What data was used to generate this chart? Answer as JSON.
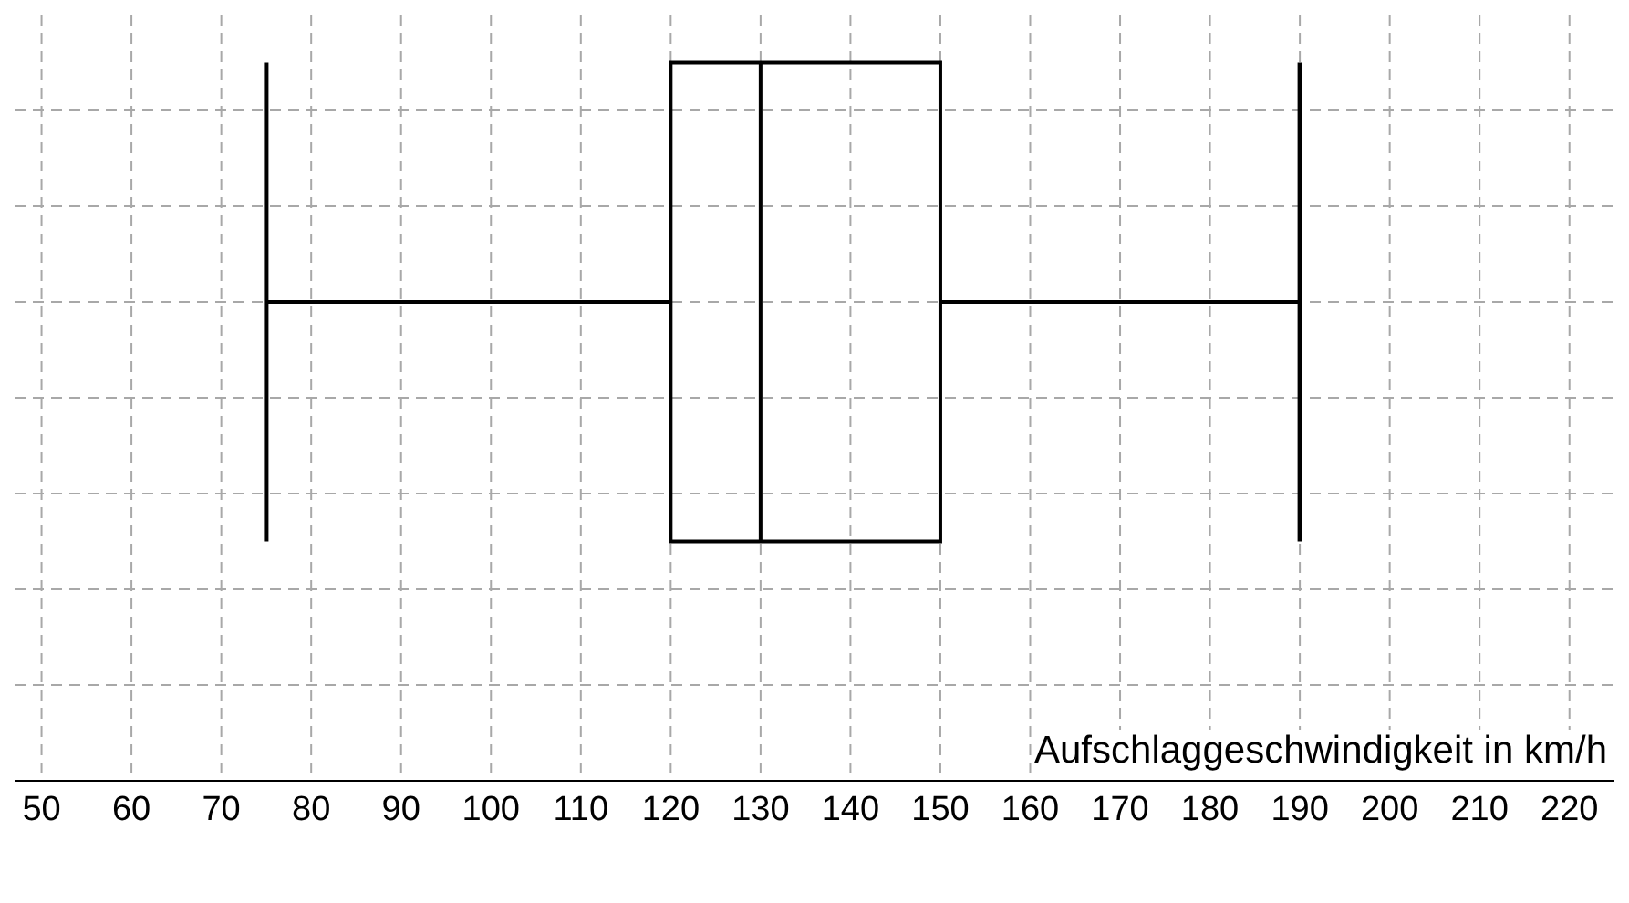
{
  "chart_data": {
    "type": "box",
    "orientation": "horizontal",
    "categories": [
      null
    ],
    "boxes": [
      {
        "low": 75,
        "q1": 120,
        "median": 130,
        "q3": 150,
        "high": 190
      }
    ],
    "color": "#000000",
    "xlabel": "Aufschlaggeschwindigkeit in km/h",
    "xlim": [
      47,
      225
    ],
    "xticks": [
      50,
      60,
      70,
      80,
      90,
      100,
      110,
      120,
      130,
      140,
      150,
      160,
      170,
      180,
      190,
      200,
      210,
      220
    ],
    "grid": true
  }
}
